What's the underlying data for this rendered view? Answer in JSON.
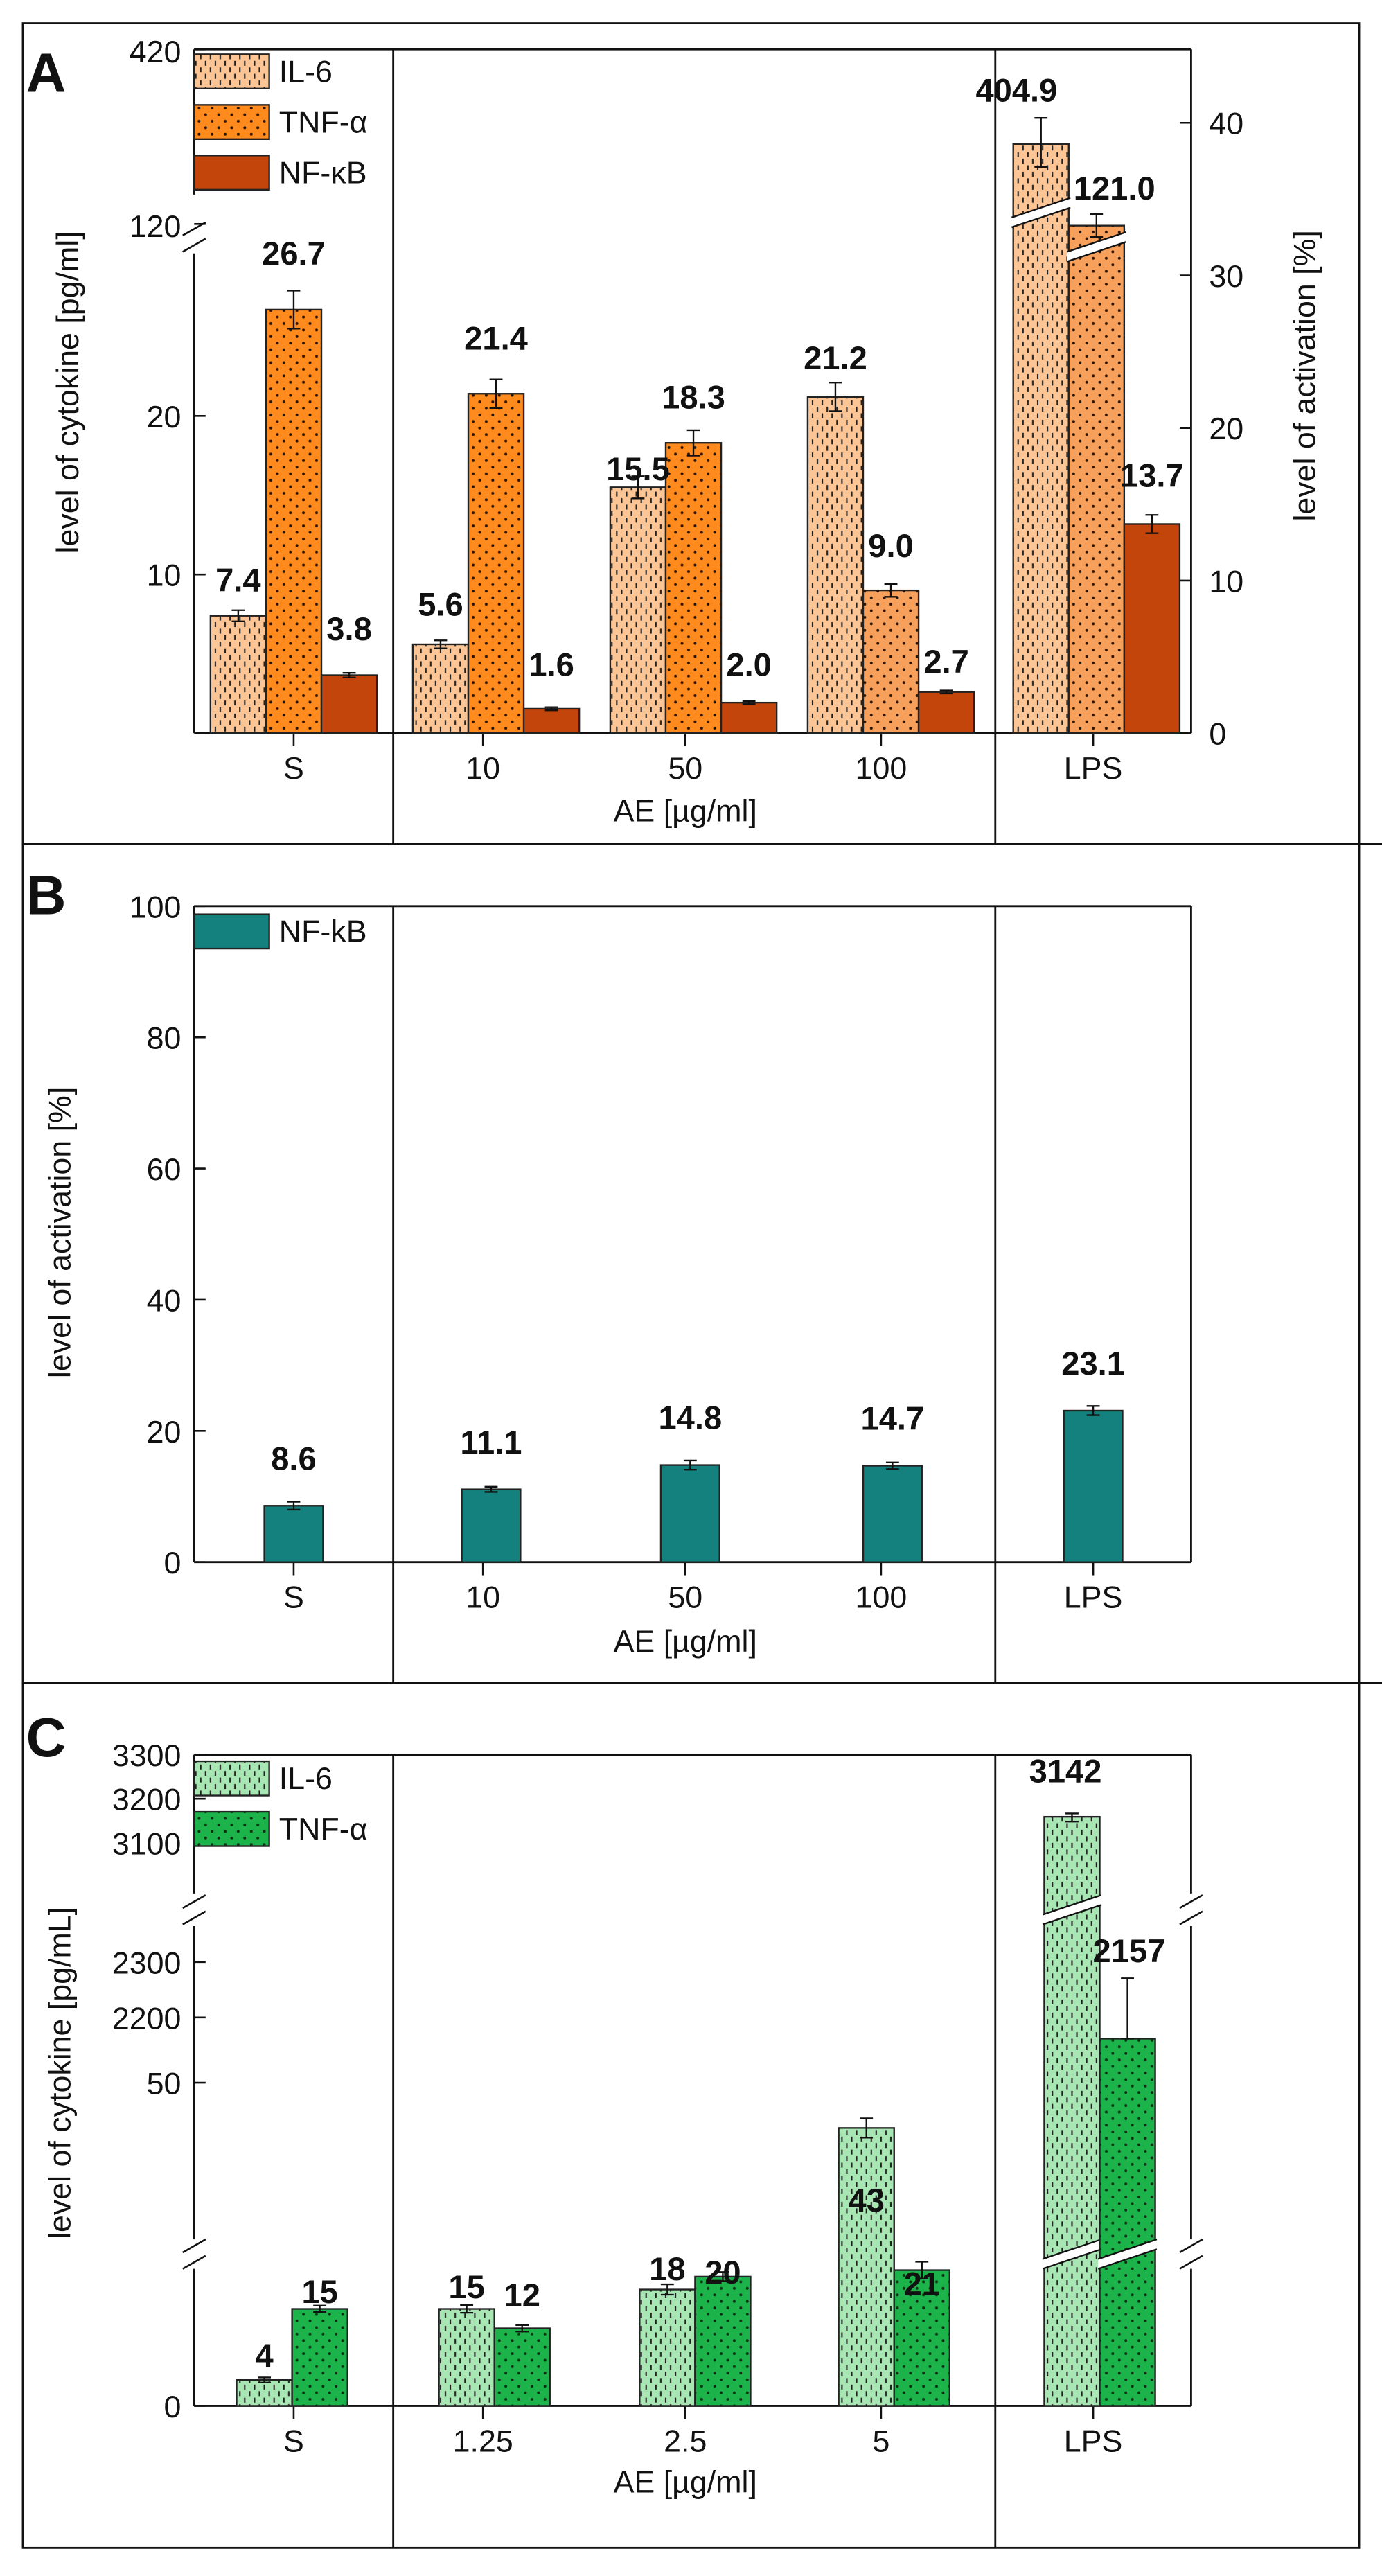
{
  "figure": {
    "panels": [
      "A",
      "B",
      "C"
    ]
  },
  "colors": {
    "il6_A": "#fcc596",
    "tnf_A": "#ff8a1e",
    "tnf_A_lps": "#f7a05c",
    "nfkb_A": "#c4450c",
    "nfkb_B": "#14817f",
    "il6_C": "#a8e6b4",
    "tnf_C": "#1cb44a"
  },
  "chart_data": [
    {
      "panel": "A",
      "type": "bar",
      "categories": [
        "S",
        "10",
        "50",
        "100",
        "LPS"
      ],
      "xlabel": "AE [µg/ml]",
      "ylabel": "level of cytokine [pg/ml]",
      "ylabel_right": "level of activation [%]",
      "yticks": [
        "10",
        "20"
      ],
      "ybreak_ticks": [
        "120",
        "420"
      ],
      "yticks_right": [
        "0",
        "10",
        "20",
        "30",
        "40"
      ],
      "legend": [
        "IL-6",
        "TNF-α",
        "NF-κB"
      ],
      "series": [
        {
          "name": "IL-6",
          "axis": "left",
          "values": [
            7.4,
            5.6,
            15.5,
            21.2,
            404.9
          ],
          "labels": [
            "7.4",
            "5.6",
            "15.5",
            "21.2",
            "404.9"
          ],
          "errors": [
            0.35,
            0.25,
            0.7,
            0.9,
            20
          ]
        },
        {
          "name": "TNF-α",
          "axis": "left",
          "values": [
            26.7,
            21.4,
            18.3,
            9.0,
            121.0
          ],
          "labels": [
            "26.7",
            "21.4",
            "18.3",
            "9.0",
            "121.0"
          ],
          "errors": [
            1.2,
            0.9,
            0.8,
            0.4,
            4
          ]
        },
        {
          "name": "NF-κB",
          "axis": "right",
          "values": [
            3.8,
            1.6,
            2.0,
            2.7,
            13.7
          ],
          "labels": [
            "3.8",
            "1.6",
            "2.0",
            "2.7",
            "13.7"
          ],
          "errors": [
            0.15,
            0.1,
            0.1,
            0.1,
            0.6
          ]
        }
      ]
    },
    {
      "panel": "B",
      "type": "bar",
      "categories": [
        "S",
        "10",
        "50",
        "100",
        "LPS"
      ],
      "xlabel": "AE [µg/ml]",
      "ylabel": "level of activation [%]",
      "ylim": [
        0,
        100
      ],
      "yticks": [
        "0",
        "20",
        "40",
        "60",
        "80",
        "100"
      ],
      "legend": [
        "NF-kB"
      ],
      "series": [
        {
          "name": "NF-kB",
          "values": [
            8.6,
            11.1,
            14.8,
            14.7,
            23.1
          ],
          "labels": [
            "8.6",
            "11.1",
            "14.8",
            "14.7",
            "23.1"
          ],
          "errors": [
            0.6,
            0.4,
            0.7,
            0.5,
            0.7
          ]
        }
      ]
    },
    {
      "panel": "C",
      "type": "bar",
      "categories": [
        "S",
        "1.25",
        "2.5",
        "5",
        "LPS"
      ],
      "xlabel": "AE [µg/ml]",
      "ylabel": "level of cytokine [pg/mL]",
      "yticks": [
        "0",
        "50"
      ],
      "ybreak_ticks": [
        "2200",
        "2300",
        "3100",
        "3200",
        "3300"
      ],
      "legend": [
        "IL-6",
        "TNF-α"
      ],
      "series": [
        {
          "name": "IL-6",
          "values": [
            4,
            15,
            18,
            43,
            3142
          ],
          "labels": [
            "4",
            "15",
            "18",
            "43",
            "3142"
          ],
          "errors": [
            0.4,
            0.6,
            0.8,
            1.5,
            8
          ]
        },
        {
          "name": "TNF-α",
          "values": [
            15,
            12,
            20,
            21,
            2157
          ],
          "labels": [
            "15",
            "12",
            "20",
            "21",
            "2157"
          ],
          "errors": [
            0.5,
            0.5,
            0.7,
            1.3,
            100
          ]
        }
      ]
    }
  ]
}
